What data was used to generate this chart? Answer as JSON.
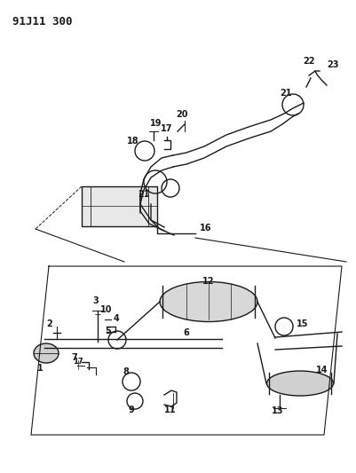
{
  "title": "91J11 300",
  "bg_color": "#ffffff",
  "line_color": "#1a1a1a",
  "title_fontsize": 9,
  "label_fontsize": 7,
  "fig_width": 4.02,
  "fig_height": 5.33,
  "dpi": 100
}
